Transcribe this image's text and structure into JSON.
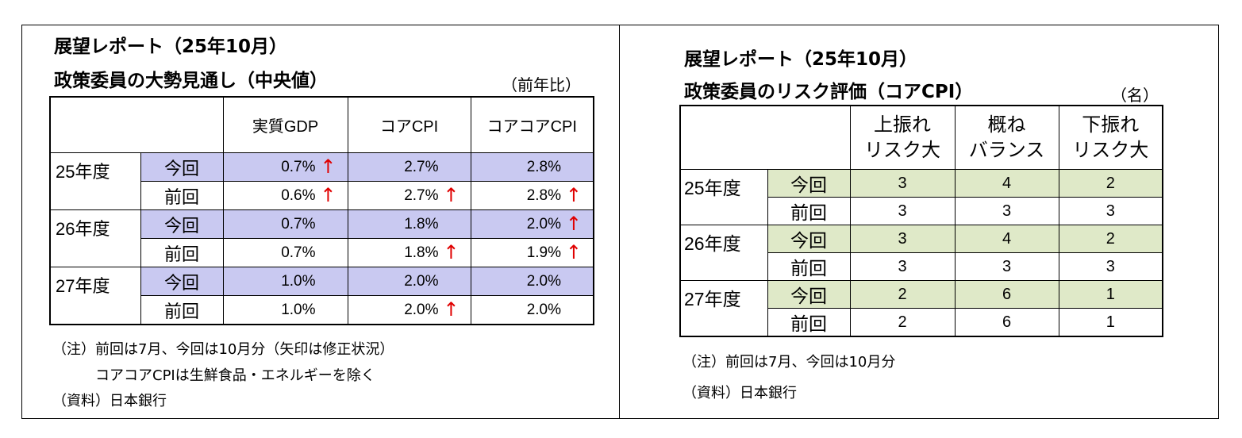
{
  "left": {
    "title_line1": "展望レポート（25年10月）",
    "title_line2": "政策委員の大勢見通し（中央値）",
    "unit": "（前年比）",
    "columns": [
      "実質GDP",
      "コアCPI",
      "コアコアCPI"
    ],
    "rows": [
      {
        "year": "25年度",
        "label": "今回",
        "values": [
          "0.7%",
          "2.7%",
          "2.8%"
        ],
        "arrows": [
          "↑",
          "",
          ""
        ]
      },
      {
        "year": "",
        "label": "前回",
        "values": [
          "0.6%",
          "2.7%",
          "2.8%"
        ],
        "arrows": [
          "↑",
          "↑",
          "↑"
        ]
      },
      {
        "year": "26年度",
        "label": "今回",
        "values": [
          "0.7%",
          "1.8%",
          "2.0%"
        ],
        "arrows": [
          "",
          "",
          "↑"
        ]
      },
      {
        "year": "",
        "label": "前回",
        "values": [
          "0.7%",
          "1.8%",
          "1.9%"
        ],
        "arrows": [
          "",
          "↑",
          "↑"
        ]
      },
      {
        "year": "27年度",
        "label": "今回",
        "values": [
          "1.0%",
          "2.0%",
          "2.0%"
        ],
        "arrows": [
          "",
          "",
          ""
        ]
      },
      {
        "year": "",
        "label": "前回",
        "values": [
          "1.0%",
          "2.0%",
          "2.0%"
        ],
        "arrows": [
          "",
          "↑",
          ""
        ]
      }
    ],
    "note1": "（注）前回は7月、今回は10月分（矢印は修正状況）",
    "note2": "コアコアCPIは生鮮食品・エネルギーを除く",
    "source": "（資料）日本銀行",
    "colors": {
      "highlight": "#c9c9f1",
      "arrow": "#e00000"
    }
  },
  "right": {
    "title_line1": "展望レポート（25年10月）",
    "title_line2": "政策委員のリスク評価（コアCPI）",
    "unit": "（名）",
    "columns": [
      {
        "line1": "上振れ",
        "line2": "リスク大"
      },
      {
        "line1": "概ね",
        "line2": "バランス"
      },
      {
        "line1": "下振れ",
        "line2": "リスク大"
      }
    ],
    "rows": [
      {
        "year": "25年度",
        "label": "今回",
        "values": [
          "3",
          "4",
          "2"
        ]
      },
      {
        "year": "",
        "label": "前回",
        "values": [
          "3",
          "3",
          "3"
        ]
      },
      {
        "year": "26年度",
        "label": "今回",
        "values": [
          "3",
          "4",
          "2"
        ]
      },
      {
        "year": "",
        "label": "前回",
        "values": [
          "3",
          "3",
          "3"
        ]
      },
      {
        "year": "27年度",
        "label": "今回",
        "values": [
          "2",
          "6",
          "1"
        ]
      },
      {
        "year": "",
        "label": "前回",
        "values": [
          "2",
          "6",
          "1"
        ]
      }
    ],
    "note1": "（注）前回は7月、今回は10月分",
    "source": "（資料）日本銀行",
    "colors": {
      "highlight": "#dfe9c8"
    }
  }
}
